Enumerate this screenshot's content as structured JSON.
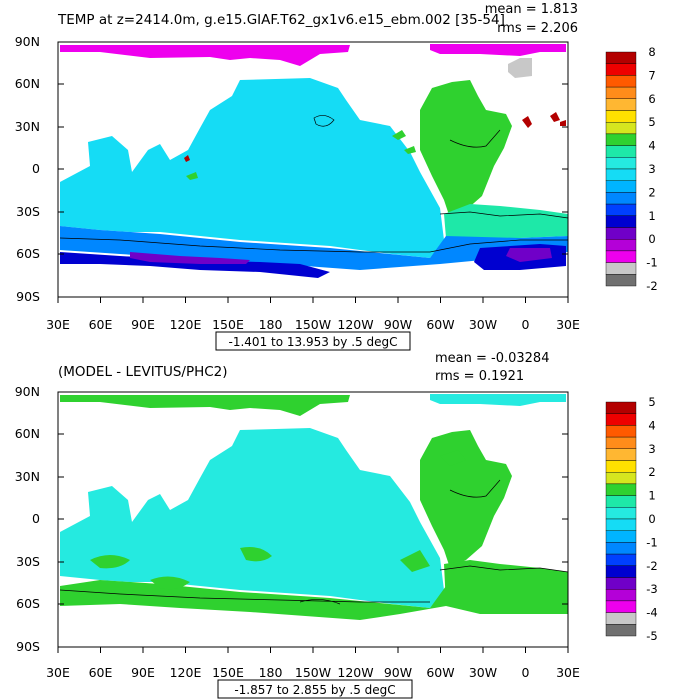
{
  "chart_data": [
    {
      "type": "heatmap",
      "title": "TEMP at z=2414.0m, g.e15.GIAF.T62_gx1v6.e15_ebm.002 [35-54]",
      "stats": [
        "mean = 1.813",
        "rms = 2.206"
      ],
      "range_note": "-1.401 to 13.953 by .5 degC",
      "x_ticks": [
        "30E",
        "60E",
        "90E",
        "120E",
        "150E",
        "180",
        "150W",
        "120W",
        "90W",
        "60W",
        "30W",
        "0",
        "30E"
      ],
      "y_ticks": [
        "90N",
        "60N",
        "30N",
        "0",
        "30S",
        "60S",
        "90S"
      ],
      "colorbar_labels": [
        "8",
        "7",
        "6",
        "5",
        "4",
        "3",
        "2",
        "1",
        "0",
        "-1",
        "-2"
      ],
      "colorbar_colors": [
        "#b30000",
        "#ee0000",
        "#ff5a00",
        "#ff8c1a",
        "#ffb732",
        "#ffe100",
        "#d6e61f",
        "#2fd12f",
        "#1ee8a8",
        "#25eae0",
        "#15dcf5",
        "#00b4ff",
        "#0087ff",
        "#0040ff",
        "#0000d0",
        "#7000c8",
        "#b400d8",
        "#ee00ee",
        "#c8c8c8",
        "#707070"
      ],
      "colors": {
        "ocean": "#15dcf5",
        "southern_ocean": "#0087ff",
        "antarctic": "#0000d0",
        "arctic": "#ee00ee",
        "atlantic": "#2fd12f",
        "atlantic_south": "#1ee8a8"
      }
    },
    {
      "type": "heatmap",
      "title": "(MODEL - LEVITUS/PHC2)",
      "stats": [
        "mean = -0.03284",
        "rms = 0.1921"
      ],
      "range_note": "-1.857 to 2.855 by .5 degC",
      "x_ticks": [
        "30E",
        "60E",
        "90E",
        "120E",
        "150E",
        "180",
        "150W",
        "120W",
        "90W",
        "60W",
        "30W",
        "0",
        "30E"
      ],
      "y_ticks": [
        "90N",
        "60N",
        "30N",
        "0",
        "30S",
        "60S",
        "90S"
      ],
      "colorbar_labels": [
        "5",
        "4",
        "3",
        "2",
        "1",
        "0",
        "-1",
        "-2",
        "-3",
        "-4",
        "-5"
      ],
      "colorbar_colors": [
        "#b30000",
        "#ee0000",
        "#ff5a00",
        "#ff8c1a",
        "#ffb732",
        "#ffe100",
        "#d6e61f",
        "#2fd12f",
        "#1ee8a8",
        "#25eae0",
        "#15dcf5",
        "#00b4ff",
        "#0087ff",
        "#0040ff",
        "#0000d0",
        "#7000c8",
        "#b400d8",
        "#ee00ee",
        "#c8c8c8",
        "#707070"
      ],
      "colors": {
        "ocean": "#25eae0",
        "positive": "#2fd12f",
        "atlantic": "#2fd12f"
      }
    }
  ]
}
